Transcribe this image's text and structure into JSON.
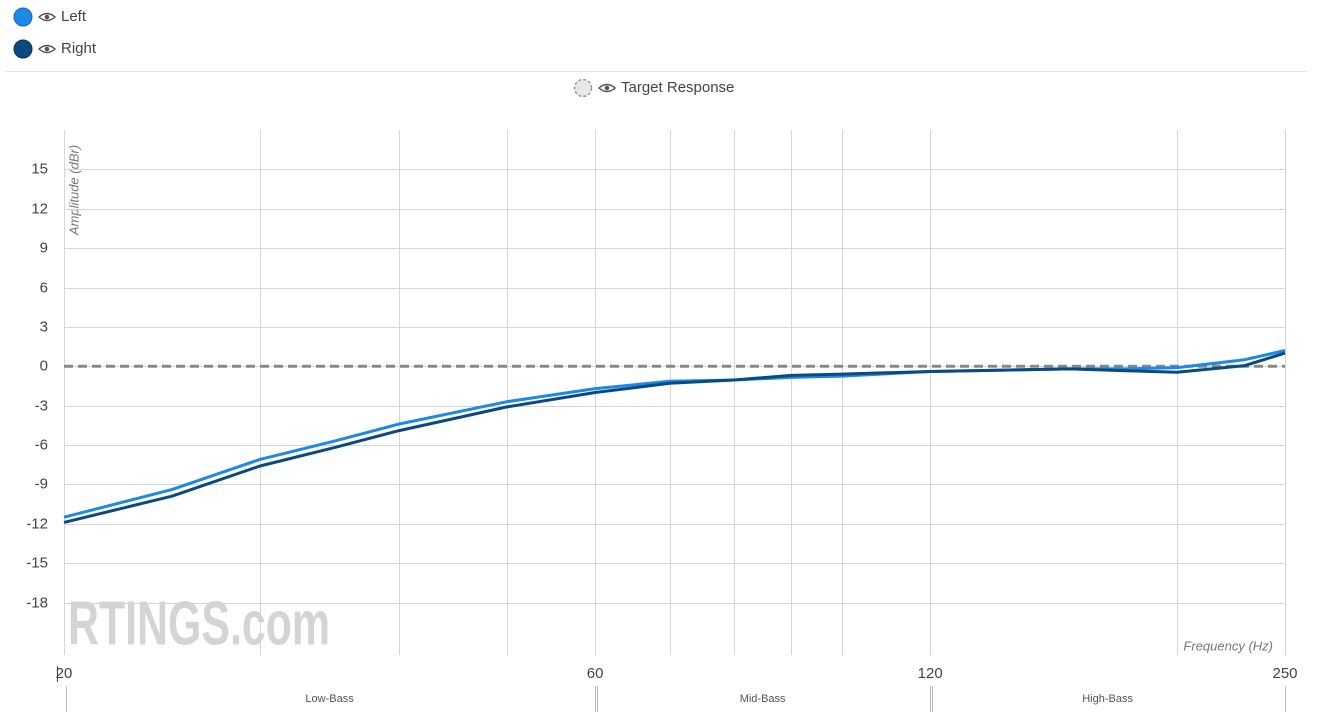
{
  "chart_data": {
    "type": "line",
    "y_label": "Amplitude (dBr)",
    "x_label": "Frequency (Hz)",
    "watermark": "RTINGS.com",
    "x": [
      20,
      25,
      30,
      35,
      40,
      50,
      60,
      70,
      80,
      90,
      100,
      120,
      160,
      180,
      200,
      230,
      250
    ],
    "series": [
      {
        "name": "Left",
        "color": "#1e88e5",
        "values": [
          -11.5,
          -9.4,
          -7.1,
          -5.7,
          -4.4,
          -2.7,
          -1.7,
          -1.15,
          -1.05,
          -0.85,
          -0.75,
          -0.4,
          -0.2,
          -0.2,
          -0.1,
          0.5,
          1.2
        ]
      },
      {
        "name": "Right",
        "color": "#0b4a80",
        "values": [
          -11.9,
          -9.9,
          -7.6,
          -6.2,
          -4.9,
          -3.1,
          -2.0,
          -1.3,
          -1.05,
          -0.7,
          -0.6,
          -0.4,
          -0.2,
          -0.35,
          -0.45,
          0.05,
          1.0
        ]
      }
    ],
    "target": {
      "name": "Target Response",
      "value": 0,
      "color": "#888888"
    },
    "x_scale": "log",
    "xlim": [
      20,
      250
    ],
    "xticks": [
      20,
      60,
      120,
      250
    ],
    "xgrid": [
      20,
      30,
      40,
      50,
      60,
      70,
      80,
      90,
      100,
      120,
      200,
      250
    ],
    "ylim": [
      -22,
      18
    ],
    "yticks": [
      15,
      12,
      9,
      6,
      3,
      0,
      -3,
      -6,
      -9,
      -12,
      -15,
      -18
    ],
    "grid": true,
    "regions": [
      {
        "label": "Low-Bass",
        "from": 20,
        "to": 60
      },
      {
        "label": "Mid-Bass",
        "from": 60,
        "to": 120
      },
      {
        "label": "High-Bass",
        "from": 120,
        "to": 250
      }
    ]
  }
}
